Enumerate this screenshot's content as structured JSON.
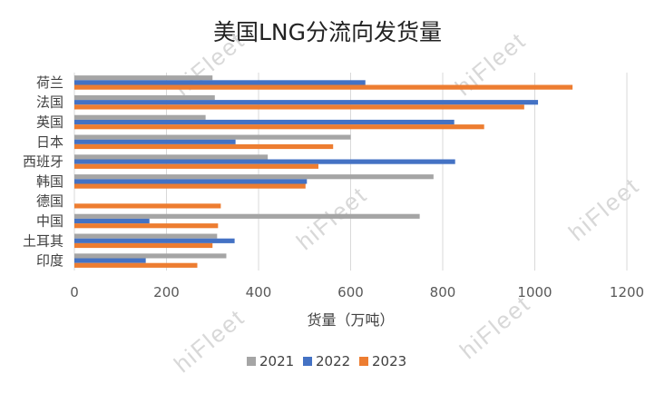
{
  "watermark": "hiFleet",
  "chart_data": {
    "type": "bar",
    "orientation": "horizontal",
    "title": "美国LNG分流向发货量",
    "xlabel": "货量（万吨）",
    "ylabel": "",
    "xlim": [
      0,
      1200
    ],
    "xticks": [
      0,
      200,
      400,
      600,
      800,
      1000,
      1200
    ],
    "grid": true,
    "legend_position": "bottom",
    "categories": [
      "荷兰",
      "法国",
      "英国",
      "日本",
      "西班牙",
      "韩国",
      "德国",
      "中国",
      "土耳其",
      "印度"
    ],
    "series": [
      {
        "name": "2021",
        "color": "#a5a5a5",
        "values": [
          300,
          305,
          285,
          600,
          420,
          780,
          0,
          750,
          310,
          330
        ]
      },
      {
        "name": "2022",
        "color": "#4472c4",
        "values": [
          632,
          1007,
          825,
          350,
          827,
          505,
          0,
          163,
          348,
          155
        ]
      },
      {
        "name": "2023",
        "color": "#ed7d31",
        "values": [
          1082,
          977,
          890,
          562,
          530,
          502,
          318,
          312,
          300,
          267
        ]
      }
    ]
  }
}
